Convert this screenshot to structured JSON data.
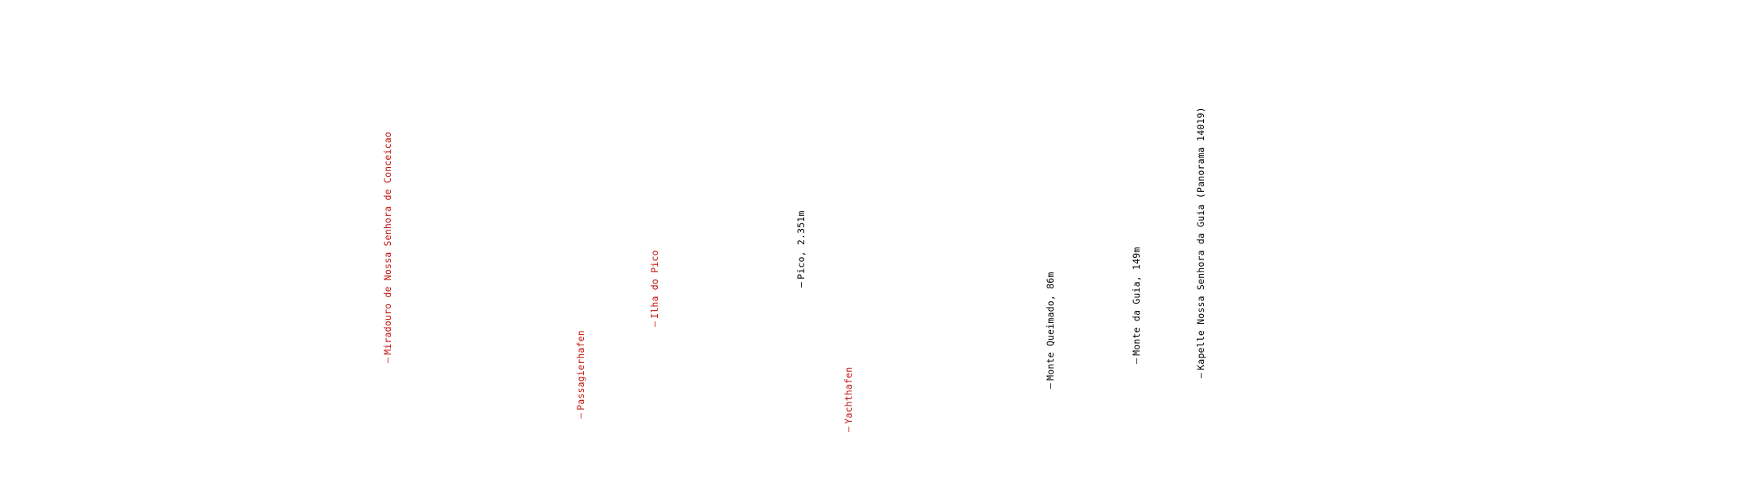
{
  "labels": [
    {
      "id": "miradouro",
      "text": "Miradouro de Nossa Senhora de Conceicao",
      "color": "red"
    },
    {
      "id": "passagierhafen",
      "text": "Passagierhafen",
      "color": "red"
    },
    {
      "id": "ilha-do-pico",
      "text": "Ilha do Pico",
      "color": "red"
    },
    {
      "id": "pico",
      "text": "Pico, 2.351m",
      "color": "black"
    },
    {
      "id": "yachthafen",
      "text": "Yachthafen",
      "color": "red"
    },
    {
      "id": "monte-queimado",
      "text": "Monte Queimado, 86m",
      "color": "black"
    },
    {
      "id": "monte-da-guia",
      "text": "Monte da Guia, 149m",
      "color": "black"
    },
    {
      "id": "kapelle",
      "text": "Kapelle Nossa Senhora da Guia (Panorama 14019)",
      "color": "black"
    }
  ],
  "marker_glyph": "—"
}
